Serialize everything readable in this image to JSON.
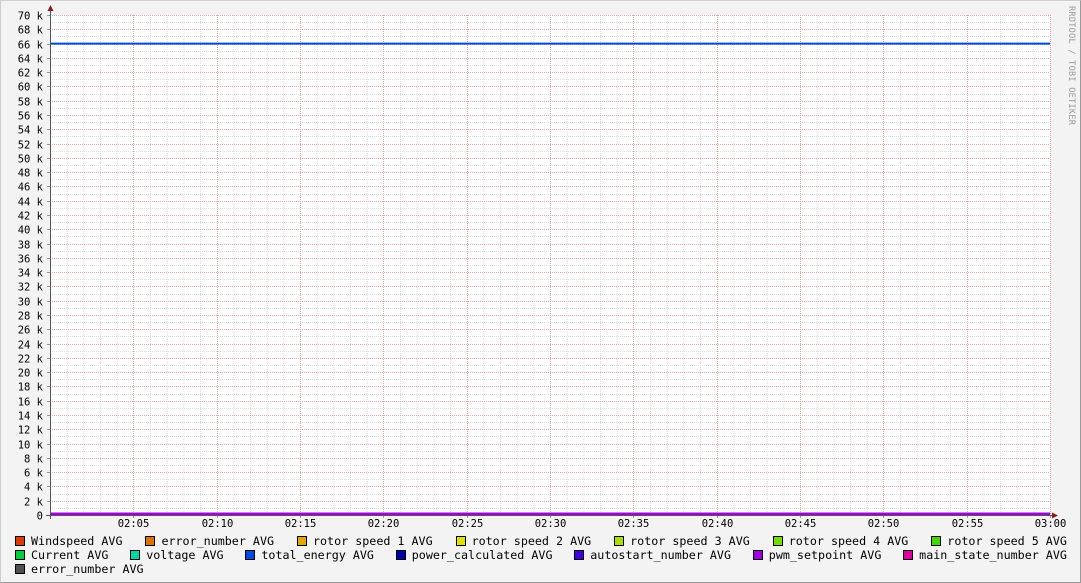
{
  "watermark": "RRDTOOL / TOBI OETIKER",
  "chart_data": {
    "type": "line",
    "title": "",
    "xlabel": "",
    "ylabel": "",
    "x_range": [
      "02:00",
      "03:00"
    ],
    "x_ticks": [
      "02:05",
      "02:10",
      "02:15",
      "02:20",
      "02:25",
      "02:30",
      "02:35",
      "02:40",
      "02:45",
      "02:50",
      "02:55",
      "03:00"
    ],
    "ylim": [
      0,
      70000
    ],
    "y_ticks": [
      "0",
      "2 k",
      "4 k",
      "6 k",
      "8 k",
      "10 k",
      "12 k",
      "14 k",
      "16 k",
      "18 k",
      "20 k",
      "22 k",
      "24 k",
      "26 k",
      "28 k",
      "30 k",
      "32 k",
      "34 k",
      "36 k",
      "38 k",
      "40 k",
      "42 k",
      "44 k",
      "46 k",
      "48 k",
      "50 k",
      "52 k",
      "54 k",
      "56 k",
      "58 k",
      "60 k",
      "62 k",
      "64 k",
      "66 k",
      "68 k",
      "70 k"
    ],
    "grid": true,
    "legend_position": "bottom",
    "series": [
      {
        "name": "Windspeed AVG",
        "color": "#e03a00",
        "values": [
          0,
          0
        ]
      },
      {
        "name": "error_number AVG",
        "color": "#e07000",
        "values": [
          0,
          0
        ]
      },
      {
        "name": "rotor speed 1 AVG",
        "color": "#e0a800",
        "values": [
          0,
          0
        ]
      },
      {
        "name": "rotor speed 2 AVG",
        "color": "#e0e000",
        "values": [
          0,
          0
        ]
      },
      {
        "name": "rotor speed 3 AVG",
        "color": "#a8e000",
        "values": [
          0,
          0
        ]
      },
      {
        "name": "rotor speed 4 AVG",
        "color": "#70e000",
        "values": [
          0,
          0
        ]
      },
      {
        "name": "rotor speed 5 AVG",
        "color": "#40d800",
        "values": [
          0,
          0
        ]
      },
      {
        "name": "Current AVG",
        "color": "#00d040",
        "values": [
          0,
          0
        ]
      },
      {
        "name": "voltage AVG",
        "color": "#00d8a8",
        "values": [
          0,
          0
        ]
      },
      {
        "name": "total_energy AVG",
        "color": "#0048e0",
        "values": [
          66000,
          66000
        ]
      },
      {
        "name": "power_calculated AVG",
        "color": "#0000a8",
        "values": [
          0,
          0
        ]
      },
      {
        "name": "autostart_number AVG",
        "color": "#4000e0",
        "values": [
          0,
          0
        ]
      },
      {
        "name": "pwm_setpoint AVG",
        "color": "#a000e0",
        "values": [
          0,
          0
        ]
      },
      {
        "name": "main_state_number AVG",
        "color": "#e000a0",
        "values": [
          0,
          0
        ]
      },
      {
        "name": "error_number AVG",
        "color": "#505050",
        "values": [
          0,
          0
        ]
      }
    ]
  }
}
